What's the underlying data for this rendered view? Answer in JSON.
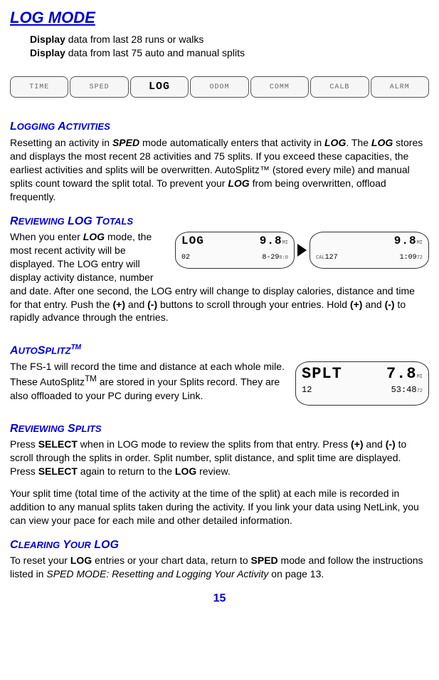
{
  "title": "LOG MODE",
  "intro": {
    "line1_bold": "Display",
    "line1_rest": " data from last 28 runs or walks",
    "line2_bold": "Display",
    "line2_rest": " data from last 75 auto and manual splits"
  },
  "modebar": {
    "items": [
      "TIME",
      "SPED",
      "LOG",
      "ODOM",
      "COMM",
      "CALB",
      "ALRM"
    ],
    "active_index": 2
  },
  "sections": {
    "logging_activities": {
      "heading_caps": "L",
      "heading_sc1": "OGGING",
      "heading_caps2": " A",
      "heading_sc2": "CTIVITIES",
      "body_pre": "Resetting an activity in ",
      "body_b1": "SPED",
      "body_mid1": " mode automatically enters that activity in ",
      "body_b2": "LOG",
      "body_mid2": ".  The ",
      "body_b3": "LOG",
      "body_mid3": " stores and displays the most recent 28 activities and 75 splits.  If you exceed these capacities, the earliest activities and splits will be overwritten.  AutoSplitz™ (stored every mile) and manual splits count toward the split total.  To prevent your ",
      "body_b4": "LOG",
      "body_mid4": " from being overwritten, offload frequently."
    },
    "reviewing_totals": {
      "heading_caps": "R",
      "heading_sc1": "EVIEWING",
      "heading_caps2": " LOG T",
      "heading_sc2": "OTALS",
      "body_pre": "When you enter ",
      "body_b1": "LOG",
      "body_mid1": " mode, the most recent activity will be displayed.  The LOG entry will display activity distance, number and date.  After one second, the LOG entry will change to display calories, distance and time for that entry.  Push the ",
      "body_b2": "(+)",
      "body_mid2": " and ",
      "body_b3": "(-)",
      "body_mid3": " buttons to scroll through your entries. Hold ",
      "body_b4": "(+)",
      "body_mid4": " and ",
      "body_b5": "(-)",
      "body_mid5": " to rapidly advance through the entries.",
      "lcd_left": {
        "r1a": "LOG",
        "r1b": "9.8",
        "r1u": "MI",
        "r2a": "02",
        "r2b": "8-29",
        "r2u": "0:0"
      },
      "lcd_right": {
        "r1a": "",
        "r1b": "9.8",
        "r1u": "MI",
        "r2a_tiny": "CAL",
        "r2a": "127",
        "r2b": "1:09",
        "r2u": "72"
      }
    },
    "autosplitz": {
      "heading_caps": "A",
      "heading_sc1": "UTO",
      "heading_caps2": "S",
      "heading_sc2": "PLITZ",
      "heading_sup": "TM",
      "body": "The FS-1 will record the time and distance at each whole mile.  These AutoSplitz",
      "body_sup": "TM",
      "body_rest": " are stored in your Splits record.  They are also offloaded to your PC during every Link.",
      "lcd": {
        "r1a": "SPLT",
        "r1b": "7.8",
        "r1u": "MI",
        "r2a": "12",
        "r2b": "53:48",
        "r2u": "72"
      }
    },
    "reviewing_splits": {
      "heading_caps": "R",
      "heading_sc1": "EVIEWING",
      "heading_caps2": " S",
      "heading_sc2": "PLITS",
      "p1_pre": "Press ",
      "p1_b1": "SELECT",
      "p1_mid1": " when in LOG mode to review the splits from that entry.  Press ",
      "p1_b2": "(+)",
      "p1_mid2": " and ",
      "p1_b3": "(-)",
      "p1_mid3": " to scroll through the splits in order.  Split number, split distance, and split time are displayed.  Press ",
      "p1_b4": "SELECT",
      "p1_mid4": " again to return to the ",
      "p1_b5": "LOG",
      "p1_mid5": " review.",
      "p2": "Your split time (total time of the activity at the time of the split) at each mile is recorded in addition to any manual splits taken during the activity.  If you link your data using NetLink, you can view your pace for each mile and other detailed information."
    },
    "clearing": {
      "heading_caps": "C",
      "heading_sc1": "LEARING",
      "heading_caps2": " Y",
      "heading_sc2": "OUR",
      "heading_caps3": " LOG",
      "body_pre": "To reset your ",
      "body_b1": "LOG",
      "body_mid1": " entries or your chart data, return to ",
      "body_b2": "SPED",
      "body_mid2": " mode and follow the instructions listed in ",
      "body_i1": "SPED MODE:  Resetting and Logging Your Activity",
      "body_mid3": " on page 13."
    }
  },
  "page_number": "15"
}
